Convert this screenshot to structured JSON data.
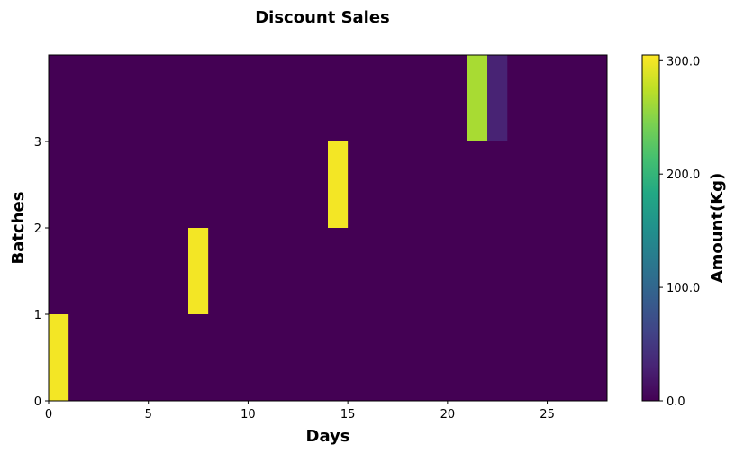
{
  "chart_data": {
    "type": "heatmap",
    "title": "Discount Sales",
    "xlabel": "Days",
    "ylabel": "Batches",
    "colorbar_label": "Amount(Kg)",
    "colormap": "viridis",
    "xlim": [
      0,
      28
    ],
    "ylim": [
      0,
      4
    ],
    "x_ticks": [
      0,
      5,
      10,
      15,
      20,
      25
    ],
    "y_ticks": [
      0,
      1,
      2,
      3
    ],
    "colorbar_range": [
      0,
      305
    ],
    "colorbar_ticks": [
      "0.0",
      "100.0",
      "200.0",
      "300.0"
    ],
    "colorbar_tick_values": [
      0,
      100,
      200,
      300
    ],
    "background_value": 0,
    "cells": [
      {
        "day": 0,
        "batch": 0,
        "amount": 300
      },
      {
        "day": 7,
        "batch": 1,
        "amount": 300
      },
      {
        "day": 14,
        "batch": 2,
        "amount": 300
      },
      {
        "day": 21,
        "batch": 3,
        "amount": 265
      },
      {
        "day": 22,
        "batch": 3,
        "amount": 30
      }
    ],
    "grid": false
  }
}
